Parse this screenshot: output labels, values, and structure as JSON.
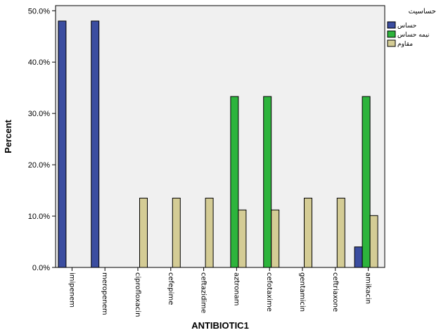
{
  "chart_data": {
    "type": "bar",
    "title": "",
    "xlabel": "ANTIBIOTIC1",
    "ylabel": "Percent",
    "ylim": [
      0,
      51
    ],
    "yticks": [
      "0.0%",
      "10.0%",
      "20.0%",
      "30.0%",
      "40.0%",
      "50.0%"
    ],
    "grid": false,
    "legend_position": "top-right",
    "legend_title": "حساسیت",
    "categories": [
      "imipenem",
      "meropenem",
      "ciprofloxacin",
      "cefepime",
      "ceftazidime",
      "aztronam",
      "cefotaxime",
      "gentamicin",
      "ceftriaxone",
      "amikacin"
    ],
    "series": [
      {
        "name": "حساس",
        "color": "#3b4da0",
        "values": [
          48,
          48,
          0,
          0,
          0,
          0,
          0,
          0,
          0,
          4
        ]
      },
      {
        "name": "نیمه حساس",
        "color": "#2db43c",
        "values": [
          0,
          0,
          0,
          0,
          0,
          33.3,
          33.3,
          0,
          0,
          33.3
        ]
      },
      {
        "name": "مقاوم",
        "color": "#d4cc95",
        "values": [
          0,
          0,
          13.5,
          13.5,
          13.5,
          11.2,
          11.2,
          13.5,
          13.5,
          10.1
        ]
      }
    ],
    "plot_background": "#f0f0f0"
  }
}
